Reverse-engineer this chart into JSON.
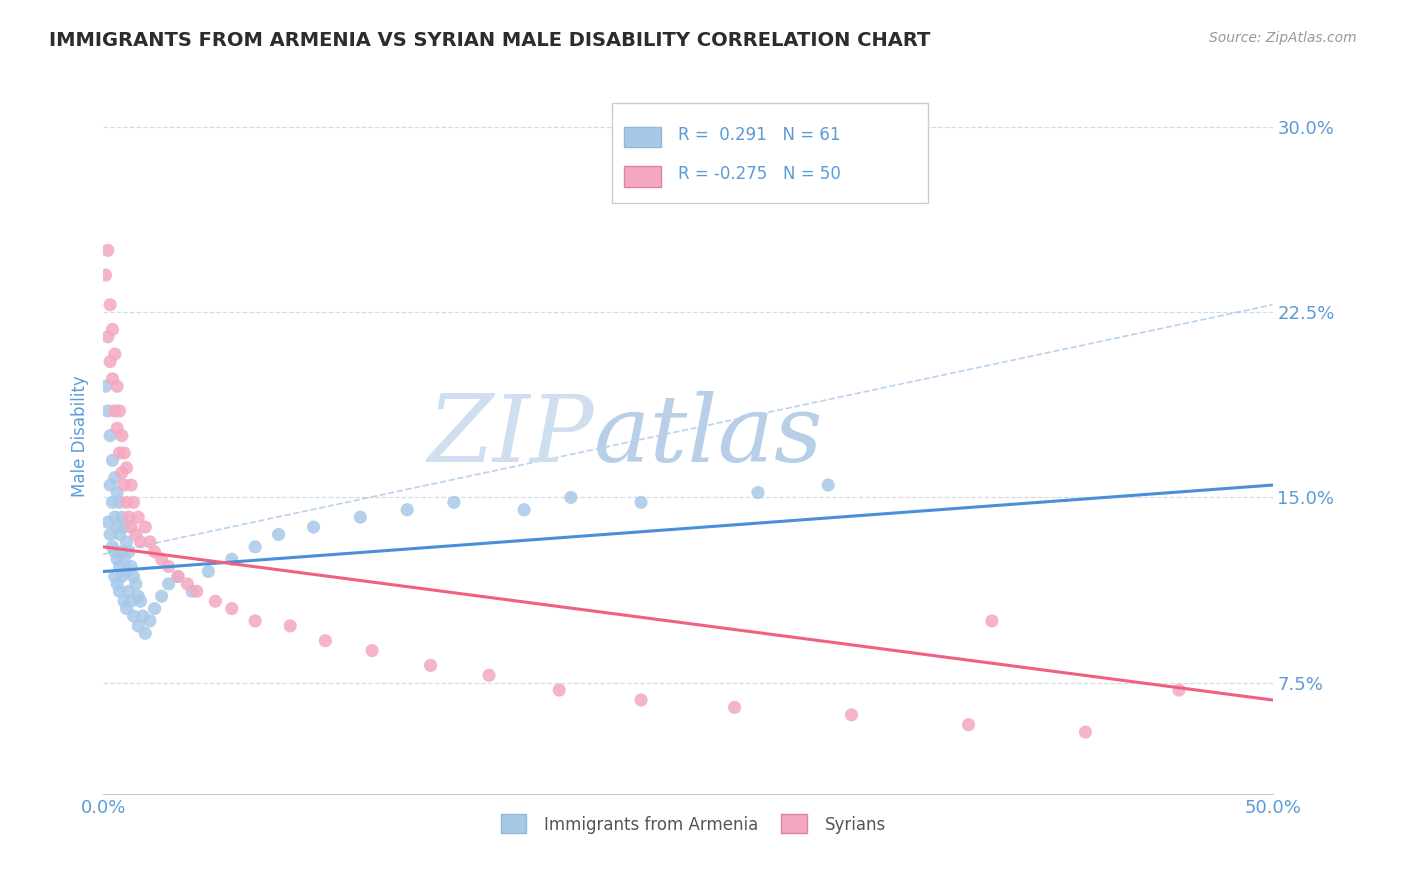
{
  "title": "IMMIGRANTS FROM ARMENIA VS SYRIAN MALE DISABILITY CORRELATION CHART",
  "source": "Source: ZipAtlas.com",
  "ylabel": "Male Disability",
  "legend_label1": "Immigrants from Armenia",
  "legend_label2": "Syrians",
  "legend_R1": "0.291",
  "legend_N1": "61",
  "legend_R2": "-0.275",
  "legend_N2": "50",
  "xlim": [
    0.0,
    0.5
  ],
  "ylim": [
    0.03,
    0.32
  ],
  "yticks": [
    0.075,
    0.15,
    0.225,
    0.3
  ],
  "ytick_labels": [
    "7.5%",
    "15.0%",
    "22.5%",
    "30.0%"
  ],
  "xticks": [
    0.0,
    0.5
  ],
  "xtick_labels": [
    "0.0%",
    "50.0%"
  ],
  "color_armenia": "#a8c8e8",
  "color_syria": "#f4a8c0",
  "line_color_armenia": "#4a90d9",
  "line_color_syria": "#f06080",
  "dashed_line_color": "#a8c8e8",
  "bg_color": "#ffffff",
  "grid_color": "#d0d8e0",
  "title_color": "#2c2c2c",
  "axis_label_color": "#5b9bd5",
  "tick_color": "#5b9bd5",
  "watermark_zip_color": "#d0dff0",
  "watermark_atlas_color": "#b8cfe8",
  "armenia_trend_x": [
    0.0,
    0.5
  ],
  "armenia_trend_y": [
    0.12,
    0.155
  ],
  "syria_trend_x": [
    0.0,
    0.5
  ],
  "syria_trend_y": [
    0.13,
    0.068
  ],
  "dashed_trend_x": [
    0.0,
    0.5
  ],
  "dashed_trend_y": [
    0.127,
    0.228
  ],
  "armenia_x": [
    0.001,
    0.002,
    0.002,
    0.003,
    0.003,
    0.003,
    0.004,
    0.004,
    0.004,
    0.005,
    0.005,
    0.005,
    0.005,
    0.006,
    0.006,
    0.006,
    0.006,
    0.007,
    0.007,
    0.007,
    0.007,
    0.008,
    0.008,
    0.008,
    0.009,
    0.009,
    0.009,
    0.01,
    0.01,
    0.01,
    0.011,
    0.011,
    0.012,
    0.012,
    0.013,
    0.013,
    0.014,
    0.015,
    0.015,
    0.016,
    0.017,
    0.018,
    0.02,
    0.022,
    0.025,
    0.028,
    0.032,
    0.038,
    0.045,
    0.055,
    0.065,
    0.075,
    0.09,
    0.11,
    0.13,
    0.15,
    0.18,
    0.2,
    0.23,
    0.28,
    0.31
  ],
  "armenia_y": [
    0.195,
    0.185,
    0.14,
    0.175,
    0.155,
    0.135,
    0.165,
    0.148,
    0.13,
    0.158,
    0.142,
    0.128,
    0.118,
    0.152,
    0.138,
    0.125,
    0.115,
    0.148,
    0.135,
    0.122,
    0.112,
    0.142,
    0.128,
    0.118,
    0.138,
    0.125,
    0.108,
    0.132,
    0.12,
    0.105,
    0.128,
    0.112,
    0.122,
    0.108,
    0.118,
    0.102,
    0.115,
    0.11,
    0.098,
    0.108,
    0.102,
    0.095,
    0.1,
    0.105,
    0.11,
    0.115,
    0.118,
    0.112,
    0.12,
    0.125,
    0.13,
    0.135,
    0.138,
    0.142,
    0.145,
    0.148,
    0.145,
    0.15,
    0.148,
    0.152,
    0.155
  ],
  "syria_x": [
    0.001,
    0.002,
    0.002,
    0.003,
    0.003,
    0.004,
    0.004,
    0.005,
    0.005,
    0.006,
    0.006,
    0.007,
    0.007,
    0.008,
    0.008,
    0.009,
    0.009,
    0.01,
    0.01,
    0.011,
    0.012,
    0.012,
    0.013,
    0.014,
    0.015,
    0.016,
    0.018,
    0.02,
    0.022,
    0.025,
    0.028,
    0.032,
    0.036,
    0.04,
    0.048,
    0.055,
    0.065,
    0.08,
    0.095,
    0.115,
    0.14,
    0.165,
    0.195,
    0.23,
    0.27,
    0.32,
    0.37,
    0.42,
    0.38,
    0.46
  ],
  "syria_y": [
    0.24,
    0.215,
    0.25,
    0.205,
    0.228,
    0.198,
    0.218,
    0.185,
    0.208,
    0.178,
    0.195,
    0.168,
    0.185,
    0.16,
    0.175,
    0.155,
    0.168,
    0.148,
    0.162,
    0.142,
    0.155,
    0.138,
    0.148,
    0.135,
    0.142,
    0.132,
    0.138,
    0.132,
    0.128,
    0.125,
    0.122,
    0.118,
    0.115,
    0.112,
    0.108,
    0.105,
    0.1,
    0.098,
    0.092,
    0.088,
    0.082,
    0.078,
    0.072,
    0.068,
    0.065,
    0.062,
    0.058,
    0.055,
    0.1,
    0.072
  ]
}
